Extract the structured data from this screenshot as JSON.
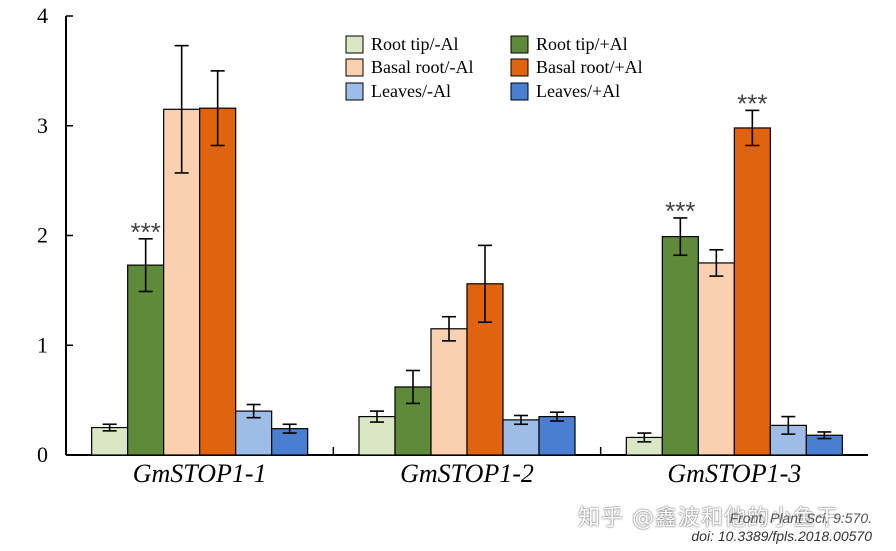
{
  "chart_data": {
    "type": "bar",
    "categories": [
      "GmSTOP1-1",
      "GmSTOP1-2",
      "GmSTOP1-3"
    ],
    "ylim": [
      0,
      4
    ],
    "yticks": [
      0,
      1,
      2,
      3,
      4
    ],
    "ylabel": "",
    "xlabel": "",
    "series": [
      {
        "name": "Root tip/-Al",
        "color": "#dbe7c4",
        "values": [
          0.25,
          0.35,
          0.16
        ],
        "errors": [
          0.03,
          0.05,
          0.04
        ]
      },
      {
        "name": "Root tip/+Al",
        "color": "#5f8a3a",
        "values": [
          1.73,
          0.62,
          1.99
        ],
        "errors": [
          0.24,
          0.15,
          0.17
        ]
      },
      {
        "name": "Basal root/-Al",
        "color": "#fbd0b0",
        "values": [
          3.15,
          1.15,
          1.75
        ],
        "errors": [
          0.58,
          0.11,
          0.12
        ]
      },
      {
        "name": "Basal  root/+Al",
        "color": "#e0640f",
        "values": [
          3.16,
          1.56,
          2.98
        ],
        "errors": [
          0.34,
          0.35,
          0.16
        ]
      },
      {
        "name": "Leaves/-Al",
        "color": "#9dbde7",
        "values": [
          0.4,
          0.32,
          0.27
        ],
        "errors": [
          0.06,
          0.04,
          0.08
        ]
      },
      {
        "name": "Leaves/+Al",
        "color": "#4a7fd0",
        "values": [
          0.24,
          0.35,
          0.18
        ],
        "errors": [
          0.04,
          0.04,
          0.03
        ]
      }
    ],
    "annotations": [
      {
        "text": "***",
        "category": 0,
        "series": 1
      },
      {
        "text": "***",
        "category": 2,
        "series": 1
      },
      {
        "text": "***",
        "category": 2,
        "series": 3
      }
    ],
    "legend_position": "top-right"
  },
  "watermark": "知乎 @鑫波和他的小鱼干",
  "citation": {
    "journal": "Front. Plant Sci. 9:570.",
    "doi": "doi: 10.3389/fpls.2018.00570"
  }
}
